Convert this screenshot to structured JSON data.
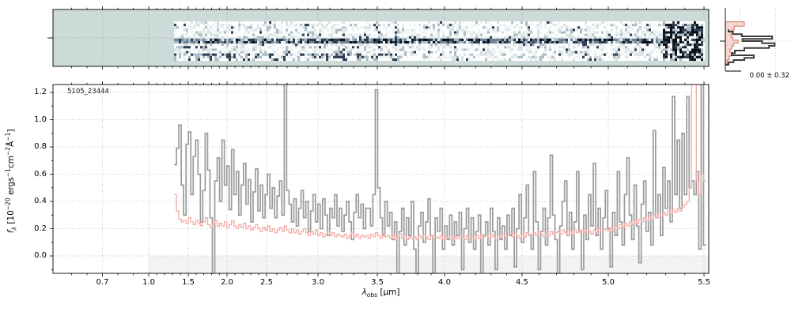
{
  "colors": {
    "flux_line": "#9b9b9b",
    "error_line": "#f2aba6",
    "grid": "#bbbbbb",
    "spine": "#000000",
    "shade_below_zero": "#f3f3f3",
    "spec2d_bg": "#ccdad8",
    "hist_dark_line": "#3c3c3c",
    "hist_noise_edge": "#e0806f",
    "hist_noise_fill": "#f8d8d2",
    "noise_palette": [
      "#ffffff",
      "#eef3f4",
      "#d7e2e4",
      "#aabcc4",
      "#6e8296",
      "#2e3d52",
      "#0a0f1a"
    ]
  },
  "chart_data": {
    "type": "line",
    "title": "",
    "panels": {
      "spec2d": {
        "description": "2D grism/prism spectrum cutout, pale blue background, noisy strip with dark central trace",
        "data_x_start_um": 1.32,
        "data_x_end_um": 5.52
      },
      "residual_hist": {
        "label": "0.00 ± 0.32",
        "dark_steps": [
          [
            0.34,
            0.05
          ],
          [
            0.375,
            0.12
          ],
          [
            0.415,
            0.26
          ],
          [
            0.45,
            0.74
          ],
          [
            0.49,
            0.27
          ],
          [
            0.525,
            0.58
          ],
          [
            0.56,
            0.78
          ],
          [
            0.6,
            0.69
          ],
          [
            0.635,
            0.3
          ],
          [
            0.675,
            0.15
          ],
          [
            0.715,
            0.1
          ],
          [
            0.75,
            0.45
          ],
          [
            0.79,
            0.3
          ],
          [
            0.825,
            0.13
          ],
          [
            0.86,
            0.05
          ],
          [
            0.9,
            0.0
          ]
        ],
        "noise_steps": [
          [
            0.22,
            0.3
          ],
          [
            0.29,
            0.14
          ],
          [
            0.35,
            0.1
          ],
          [
            0.41,
            0.09
          ],
          [
            0.465,
            0.12
          ],
          [
            0.51,
            0.2
          ],
          [
            0.555,
            0.13
          ],
          [
            0.6,
            0.1
          ],
          [
            0.65,
            0.07
          ],
          [
            0.7,
            0.1
          ],
          [
            0.76,
            0.06
          ],
          [
            0.82,
            0.03
          ],
          [
            0.88,
            0.0
          ]
        ]
      },
      "spectrum1d": {
        "annotation": "5105_23444",
        "xlabel": {
          "p1": "λ",
          "sub": "obs",
          "p2": " [μm]"
        },
        "ylabel": {
          "f": "f",
          "sub": "λ",
          "p1": " [10",
          "e1": "−20",
          "p2": " ergs",
          "e2": "−1",
          "p3": "cm",
          "e3": "−2",
          "p4": "Å",
          "e4": "−1",
          "p5": "]"
        },
        "x_axis": {
          "unit": "μm",
          "anchors": [
            [
              0.38,
              0.0
            ],
            [
              0.7,
              0.0754
            ],
            [
              1.0,
              0.146
            ],
            [
              1.5,
              0.2063
            ],
            [
              2.0,
              0.2654
            ],
            [
              2.5,
              0.3257
            ],
            [
              3.0,
              0.4041
            ],
            [
              3.5,
              0.4946
            ],
            [
              4.0,
              0.5971
            ],
            [
              4.5,
              0.7153
            ],
            [
              5.0,
              0.8468
            ],
            [
              5.5,
              0.9928
            ],
            [
              5.55,
              1.0
            ]
          ],
          "ticks": [
            {
              "value": 0.7,
              "label": "0.7"
            },
            {
              "value": 1.0,
              "label": "1.0"
            },
            {
              "value": 1.5,
              "label": "1.5"
            },
            {
              "value": 2.0,
              "label": "2.0"
            },
            {
              "value": 2.5,
              "label": "2.5"
            },
            {
              "value": 3.0,
              "label": "3.0"
            },
            {
              "value": 3.5,
              "label": "3.5"
            },
            {
              "value": 4.0,
              "label": "4.0"
            },
            {
              "value": 4.5,
              "label": "4.5"
            },
            {
              "value": 5.0,
              "label": "5.0"
            },
            {
              "value": 5.5,
              "label": "5.5"
            }
          ],
          "minor_step": 0.1,
          "minor_range": [
            0.5,
            5.5
          ]
        },
        "y_axis": {
          "ticks": [
            {
              "value": 0.0,
              "label": "0.0"
            },
            {
              "value": 0.2,
              "label": "0.2"
            },
            {
              "value": 0.4,
              "label": "0.4"
            },
            {
              "value": 0.6,
              "label": "0.6"
            },
            {
              "value": 0.8,
              "label": "0.8"
            },
            {
              "value": 1.0,
              "label": "1.0"
            },
            {
              "value": 1.2,
              "label": "1.2"
            }
          ],
          "minor_step": 0.1,
          "range": [
            -0.128,
            1.258
          ]
        },
        "shade_below_zero": {
          "x_start_um": 1.0
        },
        "flux": {
          "x_start_um": 1.32,
          "x_end_um": 5.52,
          "sampling": "uniform-detector-pixel",
          "values": [
            0.67,
            0.79,
            0.96,
            0.52,
            0.3,
            0.82,
            0.91,
            0.45,
            0.73,
            0.85,
            0.6,
            0.25,
            0.48,
            0.9,
            0.63,
            0.28,
            -0.2,
            0.55,
            0.72,
            0.4,
            0.85,
            0.52,
            0.66,
            0.34,
            0.78,
            0.45,
            0.62,
            0.3,
            0.52,
            0.68,
            0.38,
            0.56,
            0.25,
            0.47,
            0.64,
            0.33,
            0.52,
            0.28,
            0.45,
            0.6,
            0.35,
            0.5,
            0.28,
            0.44,
            0.55,
            0.3,
            1.35,
            0.48,
            0.38,
            0.25,
            0.42,
            0.22,
            0.35,
            0.48,
            0.28,
            0.4,
            0.18,
            0.33,
            0.45,
            0.25,
            0.38,
            0.2,
            0.42,
            0.3,
            0.15,
            0.35,
            0.28,
            0.45,
            0.22,
            0.35,
            0.18,
            0.3,
            0.4,
            0.25,
            0.12,
            0.32,
            0.45,
            0.28,
            0.38,
            0.2,
            0.35,
            0.35,
            0.22,
            0.45,
            1.22,
            0.5,
            0.28,
            0.15,
            0.4,
            0.22,
            0.32,
            0.12,
            0.25,
            -0.13,
            0.18,
            0.35,
            0.08,
            0.28,
            0.15,
            0.4,
            0.05,
            -0.13,
            0.22,
            0.32,
            0.1,
            0.25,
            0.42,
            0.15,
            -0.13,
            0.28,
            0.18,
            0.35,
            0.05,
            0.22,
            0.12,
            0.3,
            0.08,
            0.25,
            0.15,
            0.32,
            -0.1,
            0.2,
            0.35,
            0.1,
            0.28,
            0.05,
            0.18,
            0.3,
            -0.13,
            0.15,
            0.25,
            0.08,
            0.35,
            0.18,
            -0.1,
            0.28,
            0.12,
            0.22,
            0.05,
            0.3,
            0.15,
            0.35,
            -0.08,
            0.2,
            0.45,
            0.1,
            0.28,
            0.52,
            0.15,
            0.05,
            0.62,
            0.25,
            -0.1,
            0.18,
            0.35,
            0.08,
            0.28,
            0.74,
            0.3,
            0.12,
            -0.13,
            0.22,
            0.4,
            0.55,
            0.15,
            0.32,
            0.05,
            0.25,
            0.62,
            0.18,
            -0.1,
            0.3,
            0.12,
            0.45,
            0.22,
            0.68,
            0.15,
            0.35,
            0.05,
            0.28,
            0.48,
            0.2,
            -0.08,
            0.32,
            0.15,
            0.62,
            0.25,
            0.08,
            0.45,
            0.72,
            0.3,
            0.12,
            0.52,
            0.22,
            -0.05,
            0.38,
            0.55,
            0.18,
            0.32,
            0.08,
            0.92,
            0.28,
            0.45,
            0.15,
            0.65,
            0.35,
            0.55,
            0.25,
            1.17,
            0.45,
            0.85,
            0.35,
            0.9,
            0.45,
            1.17,
            0.5,
            0.55,
            0.45,
            0.62,
            0.05,
            1.4,
            0.08
          ]
        },
        "error": {
          "values": [
            0.45,
            0.33,
            0.27,
            0.25,
            0.26,
            0.24,
            0.28,
            0.25,
            0.23,
            0.26,
            0.24,
            0.22,
            0.25,
            0.28,
            0.23,
            0.21,
            0.24,
            0.26,
            0.22,
            0.24,
            0.22,
            0.25,
            0.21,
            0.23,
            0.26,
            0.22,
            0.2,
            0.23,
            0.21,
            0.24,
            0.2,
            0.22,
            0.19,
            0.21,
            0.23,
            0.2,
            0.18,
            0.21,
            0.19,
            0.22,
            0.18,
            0.2,
            0.17,
            0.19,
            0.21,
            0.18,
            0.22,
            0.19,
            0.17,
            0.2,
            0.17,
            0.19,
            0.16,
            0.18,
            0.2,
            0.17,
            0.15,
            0.18,
            0.16,
            0.19,
            0.15,
            0.17,
            0.14,
            0.16,
            0.18,
            0.15,
            0.17,
            0.14,
            0.16,
            0.15,
            0.14,
            0.16,
            0.13,
            0.15,
            0.17,
            0.14,
            0.16,
            0.13,
            0.15,
            0.14,
            0.15,
            0.13,
            0.16,
            0.14,
            0.17,
            0.15,
            0.13,
            0.16,
            0.14,
            0.15,
            0.13,
            0.15,
            0.12,
            0.14,
            0.16,
            0.13,
            0.15,
            0.12,
            0.14,
            0.13,
            0.14,
            0.12,
            0.15,
            0.13,
            0.16,
            0.14,
            0.12,
            0.15,
            0.13,
            0.14,
            0.13,
            0.15,
            0.12,
            0.14,
            0.13,
            0.15,
            0.12,
            0.14,
            0.13,
            0.15,
            0.14,
            0.12,
            0.15,
            0.13,
            0.14,
            0.12,
            0.15,
            0.13,
            0.16,
            0.14,
            0.15,
            0.13,
            0.16,
            0.14,
            0.12,
            0.15,
            0.13,
            0.16,
            0.14,
            0.15,
            0.16,
            0.14,
            0.17,
            0.15,
            0.13,
            0.16,
            0.14,
            0.17,
            0.15,
            0.16,
            0.17,
            0.15,
            0.18,
            0.16,
            0.14,
            0.17,
            0.15,
            0.18,
            0.16,
            0.17,
            0.18,
            0.16,
            0.19,
            0.17,
            0.15,
            0.18,
            0.16,
            0.19,
            0.17,
            0.18,
            0.19,
            0.17,
            0.2,
            0.18,
            0.16,
            0.19,
            0.17,
            0.2,
            0.18,
            0.19,
            0.2,
            0.18,
            0.21,
            0.19,
            0.22,
            0.2,
            0.23,
            0.21,
            0.24,
            0.22,
            0.25,
            0.23,
            0.26,
            0.24,
            0.27,
            0.25,
            0.28,
            0.26,
            0.29,
            0.27,
            0.3,
            0.28,
            0.31,
            0.29,
            0.32,
            0.3,
            0.33,
            0.31,
            0.34,
            0.32,
            0.35,
            0.33,
            0.36,
            0.38,
            0.4,
            0.5,
            1.5,
            1.5,
            0.55,
            0.45,
            0.6,
            0.55
          ]
        }
      }
    }
  }
}
